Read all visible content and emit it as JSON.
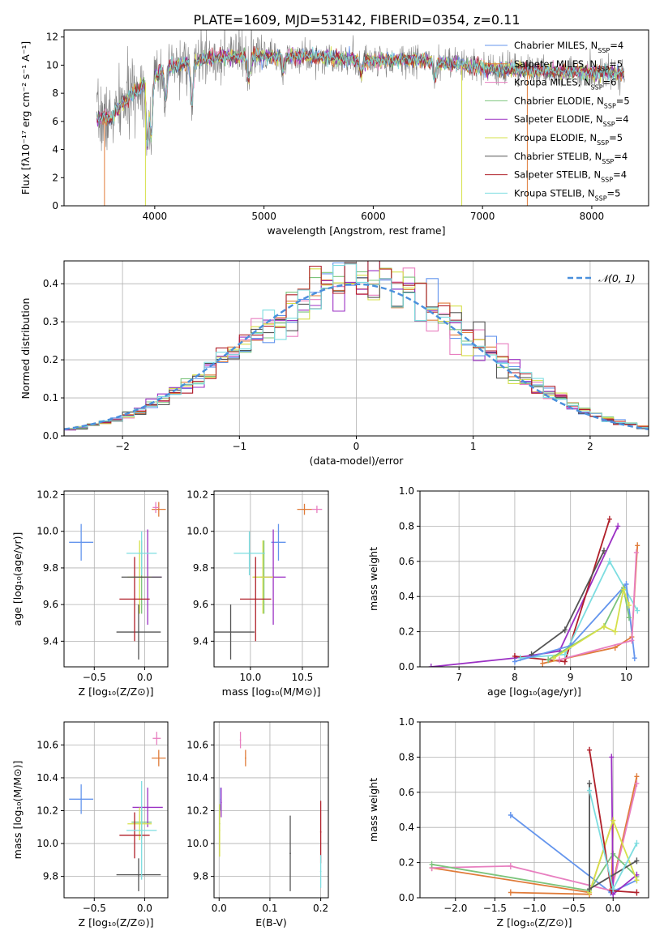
{
  "title": "PLATE=1609, MJD=53142, FIBERID=0354, z=0.11",
  "colors": {
    "chabrier_miles": "#6495ed",
    "salpeter_miles": "#e07b39",
    "kroupa_miles": "#e87fc0",
    "chabrier_elodie": "#7cc47c",
    "salpeter_elodie": "#9b30c4",
    "kroupa_elodie": "#d6e04a",
    "chabrier_stelib": "#555555",
    "salpeter_stelib": "#b0202a",
    "kroupa_stelib": "#7ddde0"
  },
  "chart_data": [
    {
      "id": "spectrum",
      "type": "line",
      "xlabel": "wavelength [Angstrom, rest frame]",
      "ylabel": "Flux [fλ10⁻¹⁷ erg cm⁻² s⁻¹ A⁻¹]",
      "xlim": [
        3170,
        8520
      ],
      "ylim": [
        0,
        12.5
      ],
      "xticks": [
        4000,
        5000,
        6000,
        7000,
        8000
      ],
      "yticks": [
        0,
        2,
        4,
        6,
        8,
        10,
        12
      ],
      "legend_position": "right",
      "legend": [
        {
          "label": "Chabrier MILES, N",
          "sub": "SSP",
          "tail": "=4",
          "color": "chabrier_miles"
        },
        {
          "label": "Salpeter MILES, N",
          "sub": "SSP",
          "tail": "=5",
          "color": "salpeter_miles"
        },
        {
          "label": "Kroupa MILES, N",
          "sub": "SSP",
          "tail": "=6",
          "color": "kroupa_miles"
        },
        {
          "label": "Chabrier ELODIE, N",
          "sub": "SSP",
          "tail": "=5",
          "color": "chabrier_elodie"
        },
        {
          "label": "Salpeter ELODIE, N",
          "sub": "SSP",
          "tail": "=4",
          "color": "salpeter_elodie"
        },
        {
          "label": "Kroupa ELODIE, N",
          "sub": "SSP",
          "tail": "=5",
          "color": "kroupa_elodie"
        },
        {
          "label": "Chabrier STELIB, N",
          "sub": "SSP",
          "tail": "=4",
          "color": "chabrier_stelib"
        },
        {
          "label": "Salpeter STELIB, N",
          "sub": "SSP",
          "tail": "=4",
          "color": "salpeter_stelib"
        },
        {
          "label": "Kroupa STELIB, N",
          "sub": "SSP",
          "tail": "=5",
          "color": "kroupa_stelib"
        }
      ],
      "continuum": [
        [
          3470,
          6.3
        ],
        [
          3600,
          6.2
        ],
        [
          3700,
          7.2
        ],
        [
          3800,
          8.0
        ],
        [
          3950,
          9.0
        ],
        [
          4100,
          9.8
        ],
        [
          4300,
          10.2
        ],
        [
          4500,
          10.5
        ],
        [
          4800,
          10.6
        ],
        [
          5100,
          10.6
        ],
        [
          5500,
          10.6
        ],
        [
          6000,
          10.3
        ],
        [
          6300,
          10.4
        ],
        [
          6600,
          10.2
        ],
        [
          7000,
          9.8
        ],
        [
          7500,
          9.6
        ],
        [
          8000,
          9.5
        ],
        [
          8300,
          9.4
        ]
      ]
    },
    {
      "id": "residuals",
      "type": "histogram",
      "xlabel": "(data-model)/error",
      "ylabel": "Normed distribution",
      "xlim": [
        -2.5,
        2.5
      ],
      "ylim": [
        0,
        0.46
      ],
      "xticks": [
        -2,
        -1,
        0,
        1,
        2
      ],
      "yticks": [
        0.0,
        0.1,
        0.2,
        0.3,
        0.4
      ],
      "legend": "𝒩(0, 1)",
      "legend_position": "top-right",
      "bin_width": 0.1
    },
    {
      "id": "age_vs_Z",
      "type": "scatter",
      "xlabel": "Z [log₁₀(Z/Z⊙)]",
      "ylabel": "age  [log₁₀(age/yr)]",
      "xlim": [
        -0.8,
        0.23
      ],
      "ylim": [
        9.26,
        10.22
      ],
      "xticks": [
        -0.5,
        0.0
      ],
      "yticks": [
        9.4,
        9.6,
        9.8,
        10.0,
        10.2
      ],
      "points": [
        {
          "c": "chabrier_miles",
          "x": -0.63,
          "y": 9.94,
          "xe": 0.12,
          "ye": 0.1
        },
        {
          "c": "salpeter_miles",
          "x": 0.14,
          "y": 10.12,
          "xe": 0.07,
          "ye": 0.04
        },
        {
          "c": "kroupa_miles",
          "x": 0.11,
          "y": 10.13,
          "xe": 0.03,
          "ye": 0.03
        },
        {
          "c": "chabrier_elodie",
          "x": -0.03,
          "y": 9.75,
          "xe": 0.1,
          "ye": 0.2
        },
        {
          "c": "salpeter_elodie",
          "x": 0.03,
          "y": 9.75,
          "xe": 0.14,
          "ye": 0.26
        },
        {
          "c": "kroupa_elodie",
          "x": -0.05,
          "y": 9.75,
          "xe": 0.12,
          "ye": 0.2
        },
        {
          "c": "chabrier_stelib",
          "x": -0.06,
          "y": 9.45,
          "xe": 0.22,
          "ye": 0.15
        },
        {
          "c": "salpeter_stelib",
          "x": -0.1,
          "y": 9.63,
          "xe": 0.15,
          "ye": 0.23
        },
        {
          "c": "kroupa_stelib",
          "x": -0.03,
          "y": 9.88,
          "xe": 0.15,
          "ye": 0.12
        },
        {
          "c": "chabrier_stelib",
          "x": -0.03,
          "y": 9.75,
          "xe": 0.2,
          "ye": 0.0
        }
      ]
    },
    {
      "id": "age_vs_mass",
      "type": "scatter",
      "xlabel": "mass [log₁₀(M/M⊙)]",
      "ylabel": "",
      "xlim": [
        9.65,
        10.75
      ],
      "ylim": [
        9.26,
        10.22
      ],
      "xticks": [
        10.0,
        10.5
      ],
      "yticks": [
        9.4,
        9.6,
        9.8,
        10.0,
        10.2
      ],
      "points": [
        {
          "c": "chabrier_miles",
          "x": 10.27,
          "y": 9.94,
          "xe": 0.07,
          "ye": 0.1
        },
        {
          "c": "salpeter_miles",
          "x": 10.52,
          "y": 10.12,
          "xe": 0.07,
          "ye": 0.03
        },
        {
          "c": "kroupa_miles",
          "x": 10.64,
          "y": 10.12,
          "xe": 0.05,
          "ye": 0.02
        },
        {
          "c": "chabrier_elodie",
          "x": 10.13,
          "y": 9.75,
          "xe": 0.1,
          "ye": 0.2
        },
        {
          "c": "salpeter_elodie",
          "x": 10.22,
          "y": 9.75,
          "xe": 0.12,
          "ye": 0.26
        },
        {
          "c": "kroupa_elodie",
          "x": 10.12,
          "y": 9.75,
          "xe": 0.1,
          "ye": 0.2
        },
        {
          "c": "chabrier_stelib",
          "x": 9.81,
          "y": 9.45,
          "xe": 0.23,
          "ye": 0.15
        },
        {
          "c": "salpeter_stelib",
          "x": 10.05,
          "y": 9.63,
          "xe": 0.15,
          "ye": 0.23
        },
        {
          "c": "kroupa_stelib",
          "x": 9.99,
          "y": 9.88,
          "xe": 0.15,
          "ye": 0.12
        }
      ]
    },
    {
      "id": "weight_vs_age",
      "type": "line",
      "xlabel": "age  [log₁₀(age/yr)]",
      "ylabel": "mass weight",
      "xlim": [
        6.3,
        10.4
      ],
      "ylim": [
        0,
        1.0
      ],
      "xticks": [
        7,
        8,
        9,
        10
      ],
      "yticks": [
        0.0,
        0.2,
        0.4,
        0.6,
        0.8,
        1.0
      ],
      "series": [
        {
          "c": "salpeter_elodie",
          "pts": [
            [
              6.5,
              0
            ],
            [
              8.0,
              0.05
            ],
            [
              8.8,
              0.09
            ],
            [
              9.85,
              0.8
            ]
          ]
        },
        {
          "c": "salpeter_stelib",
          "pts": [
            [
              8.0,
              0.06
            ],
            [
              8.9,
              0.03
            ],
            [
              9.7,
              0.84
            ]
          ]
        },
        {
          "c": "chabrier_stelib",
          "pts": [
            [
              8.3,
              0.07
            ],
            [
              8.9,
              0.21
            ],
            [
              9.6,
              0.66
            ]
          ]
        },
        {
          "c": "kroupa_stelib",
          "pts": [
            [
              8.1,
              0.05
            ],
            [
              8.9,
              0.07
            ],
            [
              9.7,
              0.6
            ],
            [
              10.2,
              0.32
            ]
          ]
        },
        {
          "c": "chabrier_miles",
          "pts": [
            [
              8.0,
              0.03
            ],
            [
              9.0,
              0.12
            ],
            [
              10.0,
              0.47
            ],
            [
              10.15,
              0.05
            ]
          ]
        },
        {
          "c": "salpeter_miles",
          "pts": [
            [
              8.5,
              0.02
            ],
            [
              9.8,
              0.11
            ],
            [
              10.1,
              0.17
            ],
            [
              10.2,
              0.69
            ]
          ]
        },
        {
          "c": "kroupa_miles",
          "pts": [
            [
              8.8,
              0.04
            ],
            [
              10.1,
              0.15
            ],
            [
              10.18,
              0.65
            ]
          ]
        },
        {
          "c": "chabrier_elodie",
          "pts": [
            [
              8.6,
              0.04
            ],
            [
              9.6,
              0.23
            ],
            [
              9.95,
              0.45
            ],
            [
              10.05,
              0.28
            ]
          ]
        },
        {
          "c": "kroupa_elodie",
          "pts": [
            [
              8.7,
              0.05
            ],
            [
              9.6,
              0.23
            ],
            [
              9.8,
              0.2
            ],
            [
              9.95,
              0.44
            ],
            [
              10.05,
              0.35
            ]
          ]
        }
      ]
    },
    {
      "id": "mass_vs_Z",
      "type": "scatter",
      "xlabel": "Z [log₁₀(Z/Z⊙)]",
      "ylabel": "mass [log₁₀(M/M⊙)]",
      "xlim": [
        -0.8,
        0.23
      ],
      "ylim": [
        9.67,
        10.74
      ],
      "xticks": [
        -0.5,
        0.0
      ],
      "yticks": [
        9.8,
        10.0,
        10.2,
        10.4,
        10.6
      ],
      "points": [
        {
          "c": "chabrier_miles",
          "x": -0.63,
          "y": 10.27,
          "xe": 0.12,
          "ye": 0.09
        },
        {
          "c": "salpeter_miles",
          "x": 0.14,
          "y": 10.52,
          "xe": 0.07,
          "ye": 0.05
        },
        {
          "c": "kroupa_miles",
          "x": 0.12,
          "y": 10.64,
          "xe": 0.04,
          "ye": 0.04
        },
        {
          "c": "chabrier_elodie",
          "x": -0.03,
          "y": 10.13,
          "xe": 0.1,
          "ye": 0.1
        },
        {
          "c": "salpeter_elodie",
          "x": 0.03,
          "y": 10.22,
          "xe": 0.15,
          "ye": 0.12
        },
        {
          "c": "kroupa_elodie",
          "x": -0.05,
          "y": 10.12,
          "xe": 0.12,
          "ye": 0.1
        },
        {
          "c": "chabrier_stelib",
          "x": -0.06,
          "y": 9.81,
          "xe": 0.22,
          "ye": 0.1
        },
        {
          "c": "salpeter_stelib",
          "x": -0.1,
          "y": 10.05,
          "xe": 0.15,
          "ye": 0.14
        },
        {
          "c": "kroupa_stelib",
          "x": -0.03,
          "y": 10.08,
          "xe": 0.15,
          "ye": 0.3
        }
      ]
    },
    {
      "id": "mass_vs_ebv",
      "type": "scatter",
      "xlabel": "E(B-V)",
      "ylabel": "",
      "xlim": [
        -0.01,
        0.215
      ],
      "ylim": [
        9.67,
        10.74
      ],
      "xticks": [
        0.0,
        0.1,
        0.2
      ],
      "yticks": [
        9.8,
        10.0,
        10.2,
        10.4,
        10.6
      ],
      "points": [
        {
          "c": "chabrier_miles",
          "x": 0.003,
          "y": 10.27,
          "xe": 0,
          "ye": 0.07
        },
        {
          "c": "salpeter_miles",
          "x": 0.052,
          "y": 10.52,
          "xe": 0,
          "ye": 0.05
        },
        {
          "c": "kroupa_miles",
          "x": 0.042,
          "y": 10.63,
          "xe": 0,
          "ye": 0.05
        },
        {
          "c": "chabrier_elodie",
          "x": 0.001,
          "y": 10.12,
          "xe": 0,
          "ye": 0.1
        },
        {
          "c": "salpeter_elodie",
          "x": 0.004,
          "y": 10.25,
          "xe": 0,
          "ye": 0.09
        },
        {
          "c": "kroupa_elodie",
          "x": 0.001,
          "y": 10.08,
          "xe": 0,
          "ye": 0.16
        },
        {
          "c": "chabrier_stelib",
          "x": 0.14,
          "y": 9.94,
          "xe": 0,
          "ye": 0.23
        },
        {
          "c": "salpeter_stelib",
          "x": 0.2,
          "y": 10.07,
          "xe": 0,
          "ye": 0.19
        },
        {
          "c": "kroupa_stelib",
          "x": 0.2,
          "y": 9.83,
          "xe": 0,
          "ye": 0.1
        }
      ]
    },
    {
      "id": "weight_vs_Z",
      "type": "line",
      "xlabel": "Z [log₁₀(Z/Z⊙)]",
      "ylabel": "mass weight",
      "xlim": [
        -2.45,
        0.45
      ],
      "ylim": [
        0,
        1.0
      ],
      "xticks": [
        -2.0,
        -1.5,
        -1.0,
        -0.5,
        0.0
      ],
      "yticks": [
        0.0,
        0.2,
        0.4,
        0.6,
        0.8,
        1.0
      ],
      "series": [
        {
          "c": "chabrier_miles",
          "pts": [
            [
              -1.3,
              0.47
            ],
            [
              -0.03,
              0.03
            ],
            [
              0.3,
              0.1
            ]
          ]
        },
        {
          "c": "salpeter_miles",
          "pts": [
            [
              -2.3,
              0.17
            ],
            [
              -0.3,
              0.03
            ],
            [
              0.0,
              0.44
            ],
            [
              -0.02,
              0.05
            ],
            [
              0.3,
              0.69
            ]
          ]
        },
        {
          "c": "kroupa_miles",
          "pts": [
            [
              -2.3,
              0.17
            ],
            [
              -1.3,
              0.18
            ],
            [
              -0.02,
              0.04
            ],
            [
              0.3,
              0.65
            ]
          ]
        },
        {
          "c": "salpeter_miles",
          "pts": [
            [
              -1.3,
              0.03
            ],
            [
              -0.3,
              0.02
            ]
          ]
        },
        {
          "c": "chabrier_elodie",
          "pts": [
            [
              -2.3,
              0.19
            ],
            [
              -0.3,
              0.04
            ],
            [
              0.0,
              0.25
            ],
            [
              0.3,
              0.12
            ]
          ]
        },
        {
          "c": "salpeter_elodie",
          "pts": [
            [
              -0.02,
              0.8
            ],
            [
              0.0,
              0.02
            ],
            [
              0.3,
              0.13
            ]
          ]
        },
        {
          "c": "kroupa_elodie",
          "pts": [
            [
              -0.3,
              0.03
            ],
            [
              0.0,
              0.44
            ],
            [
              0.3,
              0.1
            ]
          ]
        },
        {
          "c": "chabrier_stelib",
          "pts": [
            [
              -0.3,
              0.65
            ],
            [
              -0.3,
              0.05
            ],
            [
              0.3,
              0.21
            ]
          ]
        },
        {
          "c": "salpeter_stelib",
          "pts": [
            [
              -0.3,
              0.84
            ],
            [
              -0.02,
              0.04
            ],
            [
              0.3,
              0.03
            ]
          ]
        },
        {
          "c": "kroupa_stelib",
          "pts": [
            [
              -0.3,
              0.61
            ],
            [
              0.0,
              0.05
            ],
            [
              0.3,
              0.31
            ]
          ]
        }
      ]
    }
  ]
}
